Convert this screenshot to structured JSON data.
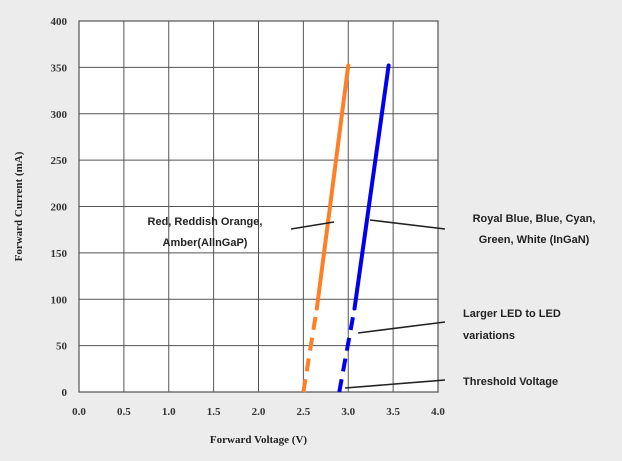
{
  "chart_data": {
    "type": "line",
    "xlabel": "Forward Voltage (V)",
    "ylabel": "Forward Current (mA)",
    "xlim": [
      0.0,
      4.0
    ],
    "ylim": [
      0,
      400
    ],
    "xticks": [
      "0.0",
      "0.5",
      "1.0",
      "1.5",
      "2.0",
      "2.5",
      "3.0",
      "3.5",
      "4.0"
    ],
    "yticks": [
      "0",
      "50",
      "100",
      "150",
      "200",
      "250",
      "300",
      "350",
      "400"
    ],
    "grid": true,
    "series": [
      {
        "color": "#ff7f27",
        "dashed_segment": [
          [
            2.5,
            0
          ],
          [
            2.65,
            90
          ]
        ],
        "solid_segment": [
          [
            2.65,
            90
          ],
          [
            3.0,
            352
          ]
        ]
      },
      {
        "color": "#0000ee",
        "dashed_segment": [
          [
            2.9,
            0
          ],
          [
            3.07,
            90
          ]
        ],
        "solid_segment": [
          [
            3.07,
            90
          ],
          [
            3.45,
            352
          ]
        ]
      }
    ],
    "annotations": [
      {
        "lines": [
          "Red, Reddish Orange,",
          "Amber(AllnGaP)"
        ]
      },
      {
        "lines": [
          "Royal Blue, Blue, Cyan,",
          "Green, White (InGaN)"
        ]
      },
      {
        "lines": [
          "Larger LED to LED",
          "variations"
        ]
      },
      {
        "lines": [
          "Threshold Voltage"
        ]
      }
    ]
  }
}
